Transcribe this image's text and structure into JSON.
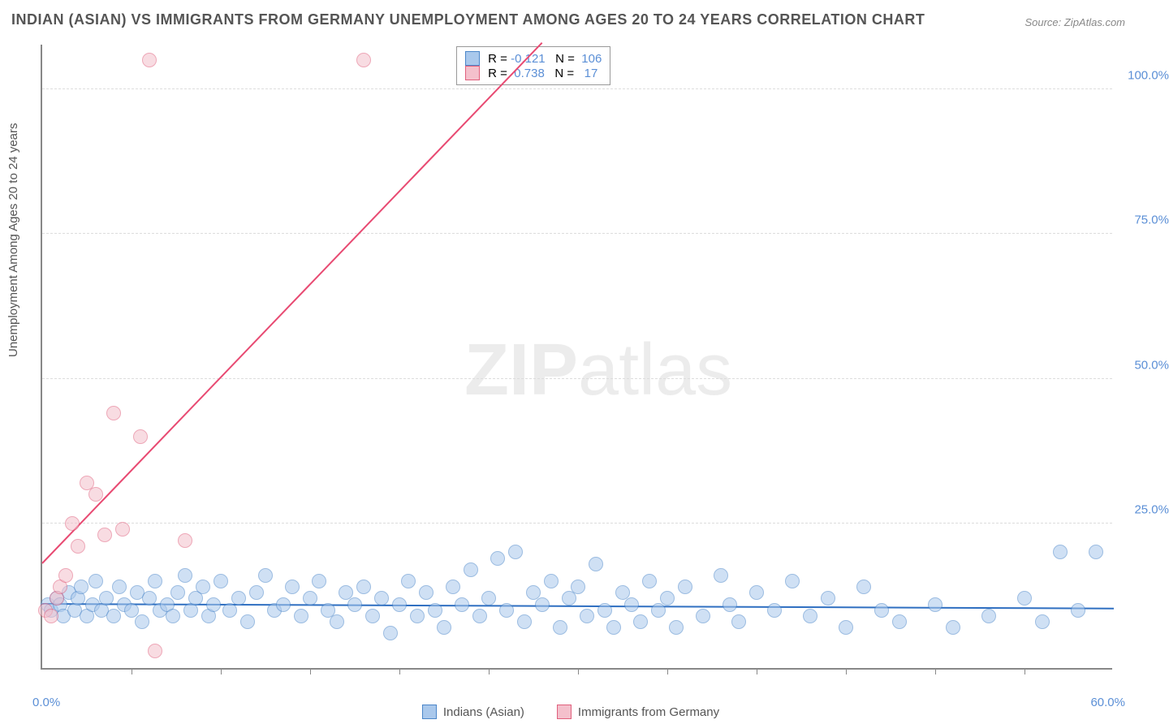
{
  "title": "INDIAN (ASIAN) VS IMMIGRANTS FROM GERMANY UNEMPLOYMENT AMONG AGES 20 TO 24 YEARS CORRELATION CHART",
  "source": "Source: ZipAtlas.com",
  "ylabel": "Unemployment Among Ages 20 to 24 years",
  "watermark_bold": "ZIP",
  "watermark_thin": "atlas",
  "chart": {
    "type": "scatter",
    "xlim": [
      0,
      60
    ],
    "ylim": [
      0,
      108
    ],
    "x_tick_step": 5,
    "x_tick_labels": {
      "0": "0.0%",
      "60": "60.0%"
    },
    "y_ticks": [
      25,
      50,
      75,
      100
    ],
    "y_tick_labels": {
      "25": "25.0%",
      "50": "50.0%",
      "75": "75.0%",
      "100": "100.0%"
    },
    "background_color": "#ffffff",
    "grid_color": "#dddddd",
    "axis_color": "#888888",
    "tick_label_color": "#5b8fd6",
    "marker_radius": 9,
    "marker_opacity": 0.55,
    "series": [
      {
        "name": "Indians (Asian)",
        "fill": "#a9c8ec",
        "stroke": "#4b86c9",
        "trend_color": "#2f6fc1",
        "R": "-0.121",
        "N": "106",
        "trend": {
          "x1": 0,
          "y1": 11,
          "x2": 60,
          "y2": 10.2
        },
        "points": [
          [
            0.3,
            11
          ],
          [
            0.5,
            10
          ],
          [
            0.8,
            12
          ],
          [
            1,
            11
          ],
          [
            1.2,
            9
          ],
          [
            1.5,
            13
          ],
          [
            1.8,
            10
          ],
          [
            2,
            12
          ],
          [
            2.2,
            14
          ],
          [
            2.5,
            9
          ],
          [
            2.8,
            11
          ],
          [
            3,
            15
          ],
          [
            3.3,
            10
          ],
          [
            3.6,
            12
          ],
          [
            4,
            9
          ],
          [
            4.3,
            14
          ],
          [
            4.6,
            11
          ],
          [
            5,
            10
          ],
          [
            5.3,
            13
          ],
          [
            5.6,
            8
          ],
          [
            6,
            12
          ],
          [
            6.3,
            15
          ],
          [
            6.6,
            10
          ],
          [
            7,
            11
          ],
          [
            7.3,
            9
          ],
          [
            7.6,
            13
          ],
          [
            8,
            16
          ],
          [
            8.3,
            10
          ],
          [
            8.6,
            12
          ],
          [
            9,
            14
          ],
          [
            9.3,
            9
          ],
          [
            9.6,
            11
          ],
          [
            10,
            15
          ],
          [
            10.5,
            10
          ],
          [
            11,
            12
          ],
          [
            11.5,
            8
          ],
          [
            12,
            13
          ],
          [
            12.5,
            16
          ],
          [
            13,
            10
          ],
          [
            13.5,
            11
          ],
          [
            14,
            14
          ],
          [
            14.5,
            9
          ],
          [
            15,
            12
          ],
          [
            15.5,
            15
          ],
          [
            16,
            10
          ],
          [
            16.5,
            8
          ],
          [
            17,
            13
          ],
          [
            17.5,
            11
          ],
          [
            18,
            14
          ],
          [
            18.5,
            9
          ],
          [
            19,
            12
          ],
          [
            19.5,
            6
          ],
          [
            20,
            11
          ],
          [
            20.5,
            15
          ],
          [
            21,
            9
          ],
          [
            21.5,
            13
          ],
          [
            22,
            10
          ],
          [
            22.5,
            7
          ],
          [
            23,
            14
          ],
          [
            23.5,
            11
          ],
          [
            24,
            17
          ],
          [
            24.5,
            9
          ],
          [
            25,
            12
          ],
          [
            25.5,
            19
          ],
          [
            26,
            10
          ],
          [
            26.5,
            20
          ],
          [
            27,
            8
          ],
          [
            27.5,
            13
          ],
          [
            28,
            11
          ],
          [
            28.5,
            15
          ],
          [
            29,
            7
          ],
          [
            29.5,
            12
          ],
          [
            30,
            14
          ],
          [
            30.5,
            9
          ],
          [
            31,
            18
          ],
          [
            31.5,
            10
          ],
          [
            32,
            7
          ],
          [
            32.5,
            13
          ],
          [
            33,
            11
          ],
          [
            33.5,
            8
          ],
          [
            34,
            15
          ],
          [
            34.5,
            10
          ],
          [
            35,
            12
          ],
          [
            35.5,
            7
          ],
          [
            36,
            14
          ],
          [
            37,
            9
          ],
          [
            38,
            16
          ],
          [
            38.5,
            11
          ],
          [
            39,
            8
          ],
          [
            40,
            13
          ],
          [
            41,
            10
          ],
          [
            42,
            15
          ],
          [
            43,
            9
          ],
          [
            44,
            12
          ],
          [
            45,
            7
          ],
          [
            46,
            14
          ],
          [
            47,
            10
          ],
          [
            48,
            8
          ],
          [
            50,
            11
          ],
          [
            51,
            7
          ],
          [
            53,
            9
          ],
          [
            55,
            12
          ],
          [
            56,
            8
          ],
          [
            57,
            20
          ],
          [
            58,
            10
          ],
          [
            59,
            20
          ]
        ]
      },
      {
        "name": "Immigrants from Germany",
        "fill": "#f4c0cc",
        "stroke": "#e0607d",
        "trend_color": "#e84a72",
        "R": "0.738",
        "N": "17",
        "trend": {
          "x1": 0,
          "y1": 18,
          "x2": 28,
          "y2": 108
        },
        "points": [
          [
            0.2,
            10
          ],
          [
            0.5,
            9
          ],
          [
            0.8,
            12
          ],
          [
            1,
            14
          ],
          [
            1.3,
            16
          ],
          [
            1.7,
            25
          ],
          [
            2,
            21
          ],
          [
            2.5,
            32
          ],
          [
            3,
            30
          ],
          [
            3.5,
            23
          ],
          [
            4,
            44
          ],
          [
            4.5,
            24
          ],
          [
            5.5,
            40
          ],
          [
            6,
            105
          ],
          [
            6.3,
            3
          ],
          [
            8,
            22
          ],
          [
            18,
            105
          ]
        ]
      }
    ]
  },
  "legend": {
    "r_label": "R =",
    "n_label": "N ="
  },
  "bottom_legend": [
    {
      "label": "Indians (Asian)",
      "fill": "#a9c8ec",
      "stroke": "#4b86c9"
    },
    {
      "label": "Immigrants from Germany",
      "fill": "#f4c0cc",
      "stroke": "#e0607d"
    }
  ]
}
